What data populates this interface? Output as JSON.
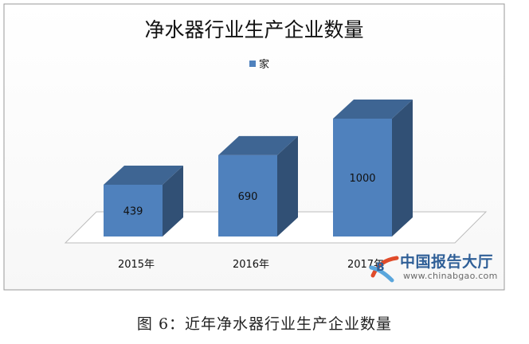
{
  "chart_data": {
    "type": "bar",
    "title": "净水器行业生产企业数量",
    "categories": [
      "2015年",
      "2016年",
      "2017年"
    ],
    "series": [
      {
        "name": "家",
        "values": [
          439,
          690,
          1000
        ]
      }
    ],
    "data_labels": [
      "439",
      "690",
      "1000"
    ],
    "ylim": [
      0,
      1000
    ],
    "legend": "top-center",
    "grid": false,
    "bar_color": "#4f81bd"
  },
  "caption": "图 6：近年净水器行业生产企业数量",
  "watermark": {
    "logo_text": "中国报告大厅",
    "url": "www.chinabgao.com"
  }
}
